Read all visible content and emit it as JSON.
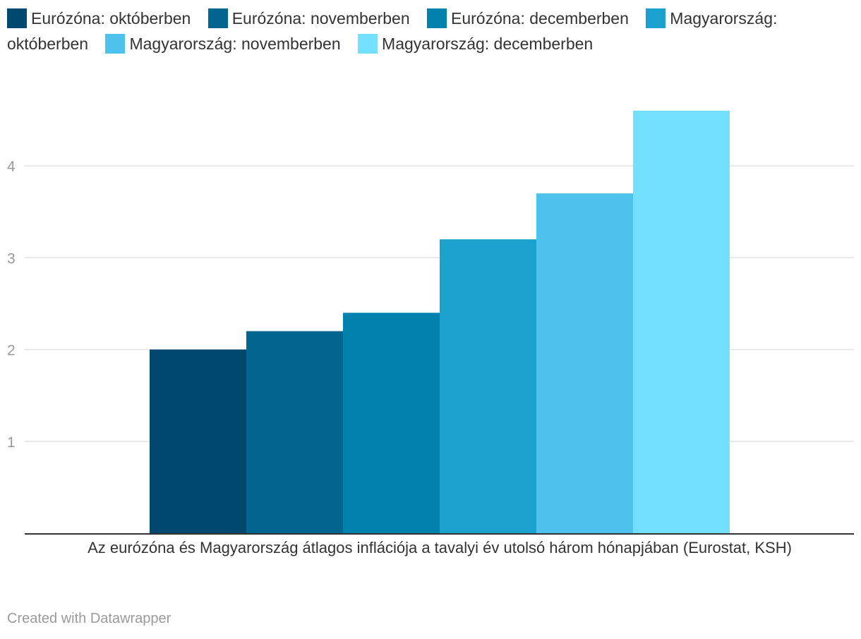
{
  "chart_data": {
    "type": "bar",
    "xlabel": "Az eurózóna és Magyarország átlagos inflációja a tavalyi év utolsó három hónapjában (Eurostat, KSH)",
    "ylabel": "",
    "ylim": [
      0,
      4.6
    ],
    "yticks": [
      1,
      2,
      3,
      4
    ],
    "grid": true,
    "legend_position": "top",
    "series": [
      {
        "name": "Eurózóna: októberben",
        "values": [
          2.0
        ],
        "color": "#01486e"
      },
      {
        "name": "Eurózóna: novemberben",
        "values": [
          2.2
        ],
        "color": "#01658d"
      },
      {
        "name": "Eurózóna: decemberben",
        "values": [
          2.4
        ],
        "color": "#0181ae"
      },
      {
        "name": "Magyarország: októberben",
        "values": [
          3.2
        ],
        "color": "#1ba1ce"
      },
      {
        "name": "Magyarország: novemberben",
        "values": [
          3.7
        ],
        "color": "#4dc2ec"
      },
      {
        "name": "Magyarország: decemberben",
        "values": [
          4.6
        ],
        "color": "#74e0ff"
      }
    ]
  },
  "footer": {
    "credit": "Created with Datawrapper"
  }
}
